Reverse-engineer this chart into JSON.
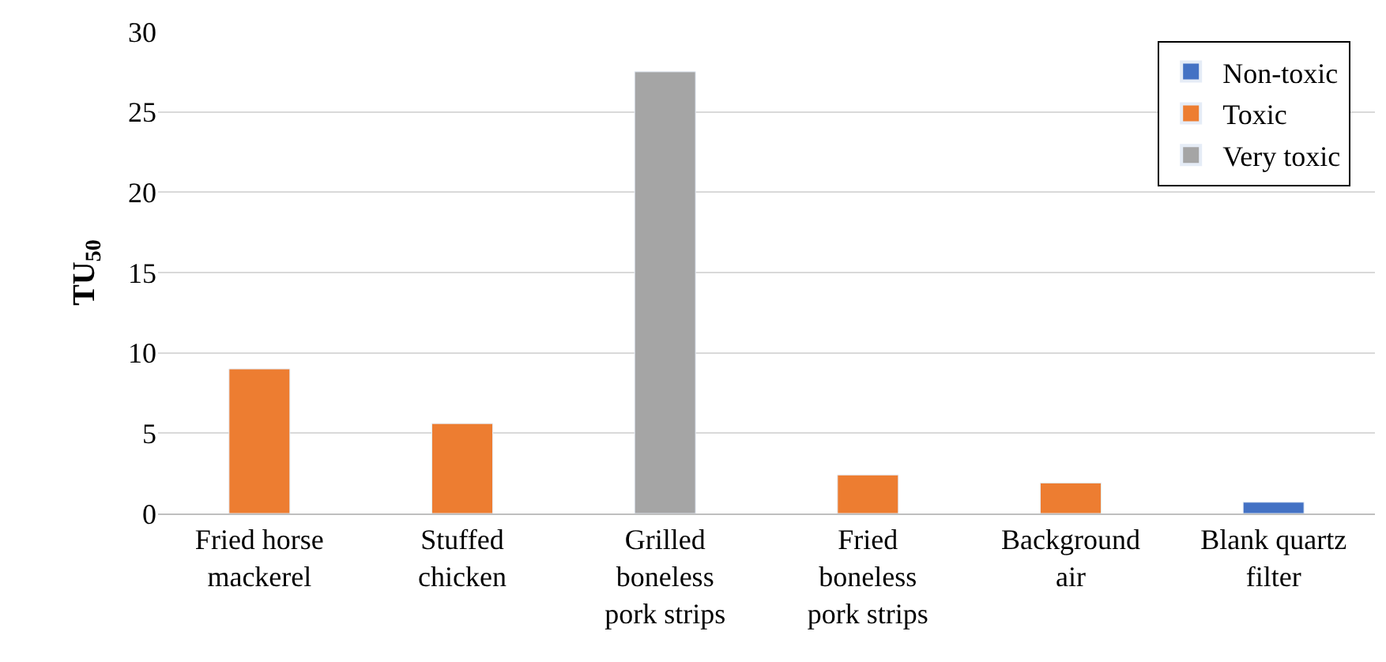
{
  "chart_data": {
    "type": "bar",
    "ylabel": "TU$_{50}$",
    "categories": [
      "Fried horse mackerel",
      "Stuffed chicken",
      "Grilled boneless pork strips",
      "Fried boneless pork strips",
      "Background air",
      "Blank quartz filter"
    ],
    "series": [
      {
        "name": "Non-toxic",
        "color": "#4472c4",
        "values": [
          null,
          null,
          null,
          null,
          null,
          0.7
        ]
      },
      {
        "name": "Toxic",
        "color": "#ed7d31",
        "values": [
          9.0,
          5.6,
          null,
          2.4,
          1.9,
          null
        ]
      },
      {
        "name": "Very toxic",
        "color": "#a5a5a5",
        "values": [
          null,
          null,
          27.5,
          null,
          null,
          null
        ]
      }
    ],
    "ylim": [
      0,
      30
    ],
    "yticks": [
      0,
      5,
      10,
      15,
      20,
      25,
      30
    ],
    "grid": "y",
    "legend": "top right"
  }
}
